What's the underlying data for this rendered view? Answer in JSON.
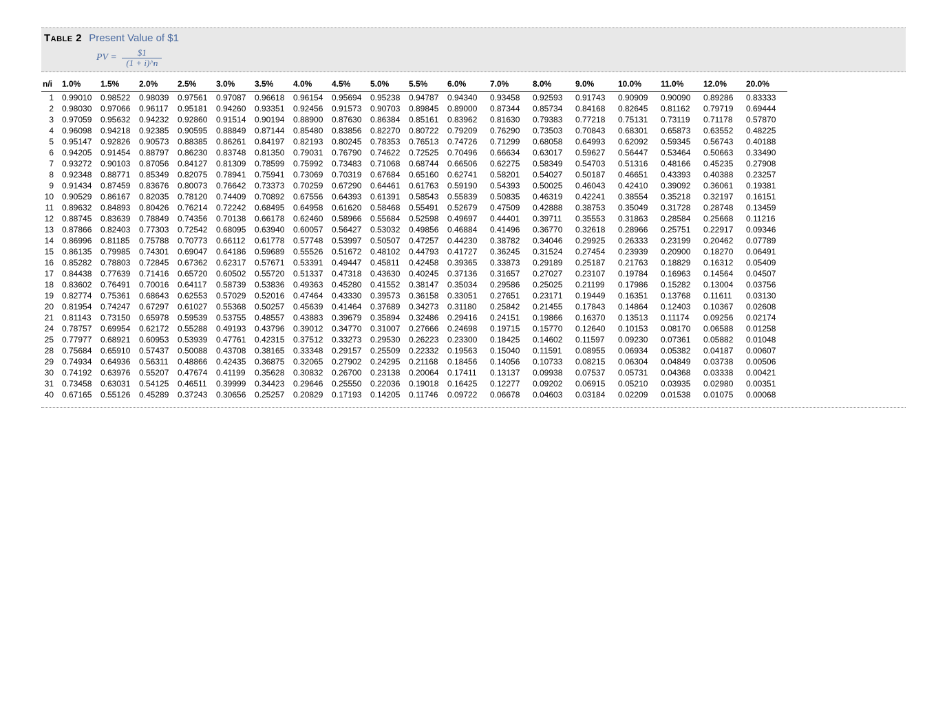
{
  "table": {
    "label": "Table 2",
    "title": "Present Value of $1",
    "formula": {
      "lhs": "PV =",
      "numerator": "$1",
      "denominator": "(1 + i)^n"
    },
    "row_header": "n/i",
    "rates": [
      "1.0%",
      "1.5%",
      "2.0%",
      "2.5%",
      "3.0%",
      "3.5%",
      "4.0%",
      "4.5%",
      "5.0%",
      "5.5%",
      "6.0%",
      "7.0%",
      "8.0%",
      "9.0%",
      "10.0%",
      "11.0%",
      "12.0%",
      "20.0%"
    ],
    "group_breaks_after": [
      5,
      10,
      15,
      20,
      29
    ],
    "col_classes": [
      "col-n",
      "col-std",
      "col-std",
      "col-std",
      "col-std",
      "col-std",
      "col-std",
      "col-std",
      "col-std",
      "col-std",
      "col-std",
      "col-w",
      "col-w",
      "col-w",
      "col-w",
      "col-w",
      "col-w",
      "col-w",
      "col-w"
    ],
    "rows": [
      {
        "n": 1,
        "v": [
          "0.99010",
          "0.98522",
          "0.98039",
          "0.97561",
          "0.97087",
          "0.96618",
          "0.96154",
          "0.95694",
          "0.95238",
          "0.94787",
          "0.94340",
          "0.93458",
          "0.92593",
          "0.91743",
          "0.90909",
          "0.90090",
          "0.89286",
          "0.83333"
        ]
      },
      {
        "n": 2,
        "v": [
          "0.98030",
          "0.97066",
          "0.96117",
          "0.95181",
          "0.94260",
          "0.93351",
          "0.92456",
          "0.91573",
          "0.90703",
          "0.89845",
          "0.89000",
          "0.87344",
          "0.85734",
          "0.84168",
          "0.82645",
          "0.81162",
          "0.79719",
          "0.69444"
        ]
      },
      {
        "n": 3,
        "v": [
          "0.97059",
          "0.95632",
          "0.94232",
          "0.92860",
          "0.91514",
          "0.90194",
          "0.88900",
          "0.87630",
          "0.86384",
          "0.85161",
          "0.83962",
          "0.81630",
          "0.79383",
          "0.77218",
          "0.75131",
          "0.73119",
          "0.71178",
          "0.57870"
        ]
      },
      {
        "n": 4,
        "v": [
          "0.96098",
          "0.94218",
          "0.92385",
          "0.90595",
          "0.88849",
          "0.87144",
          "0.85480",
          "0.83856",
          "0.82270",
          "0.80722",
          "0.79209",
          "0.76290",
          "0.73503",
          "0.70843",
          "0.68301",
          "0.65873",
          "0.63552",
          "0.48225"
        ]
      },
      {
        "n": 5,
        "v": [
          "0.95147",
          "0.92826",
          "0.90573",
          "0.88385",
          "0.86261",
          "0.84197",
          "0.82193",
          "0.80245",
          "0.78353",
          "0.76513",
          "0.74726",
          "0.71299",
          "0.68058",
          "0.64993",
          "0.62092",
          "0.59345",
          "0.56743",
          "0.40188"
        ]
      },
      {
        "n": 6,
        "v": [
          "0.94205",
          "0.91454",
          "0.88797",
          "0.86230",
          "0.83748",
          "0.81350",
          "0.79031",
          "0.76790",
          "0.74622",
          "0.72525",
          "0.70496",
          "0.66634",
          "0.63017",
          "0.59627",
          "0.56447",
          "0.53464",
          "0.50663",
          "0.33490"
        ]
      },
      {
        "n": 7,
        "v": [
          "0.93272",
          "0.90103",
          "0.87056",
          "0.84127",
          "0.81309",
          "0.78599",
          "0.75992",
          "0.73483",
          "0.71068",
          "0.68744",
          "0.66506",
          "0.62275",
          "0.58349",
          "0.54703",
          "0.51316",
          "0.48166",
          "0.45235",
          "0.27908"
        ]
      },
      {
        "n": 8,
        "v": [
          "0.92348",
          "0.88771",
          "0.85349",
          "0.82075",
          "0.78941",
          "0.75941",
          "0.73069",
          "0.70319",
          "0.67684",
          "0.65160",
          "0.62741",
          "0.58201",
          "0.54027",
          "0.50187",
          "0.46651",
          "0.43393",
          "0.40388",
          "0.23257"
        ]
      },
      {
        "n": 9,
        "v": [
          "0.91434",
          "0.87459",
          "0.83676",
          "0.80073",
          "0.76642",
          "0.73373",
          "0.70259",
          "0.67290",
          "0.64461",
          "0.61763",
          "0.59190",
          "0.54393",
          "0.50025",
          "0.46043",
          "0.42410",
          "0.39092",
          "0.36061",
          "0.19381"
        ]
      },
      {
        "n": 10,
        "v": [
          "0.90529",
          "0.86167",
          "0.82035",
          "0.78120",
          "0.74409",
          "0.70892",
          "0.67556",
          "0.64393",
          "0.61391",
          "0.58543",
          "0.55839",
          "0.50835",
          "0.46319",
          "0.42241",
          "0.38554",
          "0.35218",
          "0.32197",
          "0.16151"
        ]
      },
      {
        "n": 11,
        "v": [
          "0.89632",
          "0.84893",
          "0.80426",
          "0.76214",
          "0.72242",
          "0.68495",
          "0.64958",
          "0.61620",
          "0.58468",
          "0.55491",
          "0.52679",
          "0.47509",
          "0.42888",
          "0.38753",
          "0.35049",
          "0.31728",
          "0.28748",
          "0.13459"
        ]
      },
      {
        "n": 12,
        "v": [
          "0.88745",
          "0.83639",
          "0.78849",
          "0.74356",
          "0.70138",
          "0.66178",
          "0.62460",
          "0.58966",
          "0.55684",
          "0.52598",
          "0.49697",
          "0.44401",
          "0.39711",
          "0.35553",
          "0.31863",
          "0.28584",
          "0.25668",
          "0.11216"
        ]
      },
      {
        "n": 13,
        "v": [
          "0.87866",
          "0.82403",
          "0.77303",
          "0.72542",
          "0.68095",
          "0.63940",
          "0.60057",
          "0.56427",
          "0.53032",
          "0.49856",
          "0.46884",
          "0.41496",
          "0.36770",
          "0.32618",
          "0.28966",
          "0.25751",
          "0.22917",
          "0.09346"
        ]
      },
      {
        "n": 14,
        "v": [
          "0.86996",
          "0.81185",
          "0.75788",
          "0.70773",
          "0.66112",
          "0.61778",
          "0.57748",
          "0.53997",
          "0.50507",
          "0.47257",
          "0.44230",
          "0.38782",
          "0.34046",
          "0.29925",
          "0.26333",
          "0.23199",
          "0.20462",
          "0.07789"
        ]
      },
      {
        "n": 15,
        "v": [
          "0.86135",
          "0.79985",
          "0.74301",
          "0.69047",
          "0.64186",
          "0.59689",
          "0.55526",
          "0.51672",
          "0.48102",
          "0.44793",
          "0.41727",
          "0.36245",
          "0.31524",
          "0.27454",
          "0.23939",
          "0.20900",
          "0.18270",
          "0.06491"
        ]
      },
      {
        "n": 16,
        "v": [
          "0.85282",
          "0.78803",
          "0.72845",
          "0.67362",
          "0.62317",
          "0.57671",
          "0.53391",
          "0.49447",
          "0.45811",
          "0.42458",
          "0.39365",
          "0.33873",
          "0.29189",
          "0.25187",
          "0.21763",
          "0.18829",
          "0.16312",
          "0.05409"
        ]
      },
      {
        "n": 17,
        "v": [
          "0.84438",
          "0.77639",
          "0.71416",
          "0.65720",
          "0.60502",
          "0.55720",
          "0.51337",
          "0.47318",
          "0.43630",
          "0.40245",
          "0.37136",
          "0.31657",
          "0.27027",
          "0.23107",
          "0.19784",
          "0.16963",
          "0.14564",
          "0.04507"
        ]
      },
      {
        "n": 18,
        "v": [
          "0.83602",
          "0.76491",
          "0.70016",
          "0.64117",
          "0.58739",
          "0.53836",
          "0.49363",
          "0.45280",
          "0.41552",
          "0.38147",
          "0.35034",
          "0.29586",
          "0.25025",
          "0.21199",
          "0.17986",
          "0.15282",
          "0.13004",
          "0.03756"
        ]
      },
      {
        "n": 19,
        "v": [
          "0.82774",
          "0.75361",
          "0.68643",
          "0.62553",
          "0.57029",
          "0.52016",
          "0.47464",
          "0.43330",
          "0.39573",
          "0.36158",
          "0.33051",
          "0.27651",
          "0.23171",
          "0.19449",
          "0.16351",
          "0.13768",
          "0.11611",
          "0.03130"
        ]
      },
      {
        "n": 20,
        "v": [
          "0.81954",
          "0.74247",
          "0.67297",
          "0.61027",
          "0.55368",
          "0.50257",
          "0.45639",
          "0.41464",
          "0.37689",
          "0.34273",
          "0.31180",
          "0.25842",
          "0.21455",
          "0.17843",
          "0.14864",
          "0.12403",
          "0.10367",
          "0.02608"
        ]
      },
      {
        "n": 21,
        "v": [
          "0.81143",
          "0.73150",
          "0.65978",
          "0.59539",
          "0.53755",
          "0.48557",
          "0.43883",
          "0.39679",
          "0.35894",
          "0.32486",
          "0.29416",
          "0.24151",
          "0.19866",
          "0.16370",
          "0.13513",
          "0.11174",
          "0.09256",
          "0.02174"
        ]
      },
      {
        "n": 24,
        "v": [
          "0.78757",
          "0.69954",
          "0.62172",
          "0.55288",
          "0.49193",
          "0.43796",
          "0.39012",
          "0.34770",
          "0.31007",
          "0.27666",
          "0.24698",
          "0.19715",
          "0.15770",
          "0.12640",
          "0.10153",
          "0.08170",
          "0.06588",
          "0.01258"
        ]
      },
      {
        "n": 25,
        "v": [
          "0.77977",
          "0.68921",
          "0.60953",
          "0.53939",
          "0.47761",
          "0.42315",
          "0.37512",
          "0.33273",
          "0.29530",
          "0.26223",
          "0.23300",
          "0.18425",
          "0.14602",
          "0.11597",
          "0.09230",
          "0.07361",
          "0.05882",
          "0.01048"
        ]
      },
      {
        "n": 28,
        "v": [
          "0.75684",
          "0.65910",
          "0.57437",
          "0.50088",
          "0.43708",
          "0.38165",
          "0.33348",
          "0.29157",
          "0.25509",
          "0.22332",
          "0.19563",
          "0.15040",
          "0.11591",
          "0.08955",
          "0.06934",
          "0.05382",
          "0.04187",
          "0.00607"
        ]
      },
      {
        "n": 29,
        "v": [
          "0.74934",
          "0.64936",
          "0.56311",
          "0.48866",
          "0.42435",
          "0.36875",
          "0.32065",
          "0.27902",
          "0.24295",
          "0.21168",
          "0.18456",
          "0.14056",
          "0.10733",
          "0.08215",
          "0.06304",
          "0.04849",
          "0.03738",
          "0.00506"
        ]
      },
      {
        "n": 30,
        "v": [
          "0.74192",
          "0.63976",
          "0.55207",
          "0.47674",
          "0.41199",
          "0.35628",
          "0.30832",
          "0.26700",
          "0.23138",
          "0.20064",
          "0.17411",
          "0.13137",
          "0.09938",
          "0.07537",
          "0.05731",
          "0.04368",
          "0.03338",
          "0.00421"
        ]
      },
      {
        "n": 31,
        "v": [
          "0.73458",
          "0.63031",
          "0.54125",
          "0.46511",
          "0.39999",
          "0.34423",
          "0.29646",
          "0.25550",
          "0.22036",
          "0.19018",
          "0.16425",
          "0.12277",
          "0.09202",
          "0.06915",
          "0.05210",
          "0.03935",
          "0.02980",
          "0.00351"
        ]
      },
      {
        "n": 40,
        "v": [
          "0.67165",
          "0.55126",
          "0.45289",
          "0.37243",
          "0.30656",
          "0.25257",
          "0.20829",
          "0.17193",
          "0.14205",
          "0.11746",
          "0.09722",
          "0.06678",
          "0.04603",
          "0.03184",
          "0.02209",
          "0.01538",
          "0.01075",
          "0.00068"
        ]
      }
    ]
  }
}
